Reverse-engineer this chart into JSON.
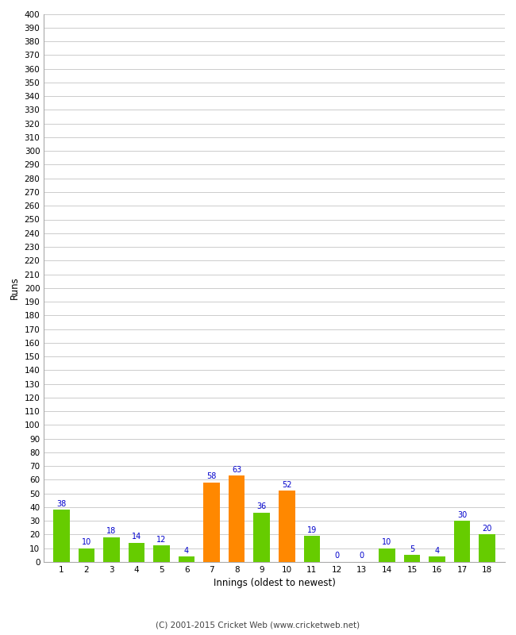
{
  "innings": [
    1,
    2,
    3,
    4,
    5,
    6,
    7,
    8,
    9,
    10,
    11,
    12,
    13,
    14,
    15,
    16,
    17,
    18
  ],
  "values": [
    38,
    10,
    18,
    14,
    12,
    4,
    58,
    63,
    36,
    52,
    19,
    0,
    0,
    10,
    5,
    4,
    30,
    20
  ],
  "colors": [
    "#66cc00",
    "#66cc00",
    "#66cc00",
    "#66cc00",
    "#66cc00",
    "#66cc00",
    "#ff8800",
    "#ff8800",
    "#66cc00",
    "#ff8800",
    "#66cc00",
    "#66cc00",
    "#66cc00",
    "#66cc00",
    "#66cc00",
    "#66cc00",
    "#66cc00",
    "#66cc00"
  ],
  "ylim": [
    0,
    400
  ],
  "yticks": [
    0,
    10,
    20,
    30,
    40,
    50,
    60,
    70,
    80,
    90,
    100,
    110,
    120,
    130,
    140,
    150,
    160,
    170,
    180,
    190,
    200,
    210,
    220,
    230,
    240,
    250,
    260,
    270,
    280,
    290,
    300,
    310,
    320,
    330,
    340,
    350,
    360,
    370,
    380,
    390,
    400
  ],
  "xlabel": "Innings (oldest to newest)",
  "ylabel": "Runs",
  "label_color": "#0000cc",
  "label_fontsize": 7,
  "axis_tick_fontsize": 7.5,
  "bar_width": 0.65,
  "background_color": "#ffffff",
  "grid_color": "#cccccc",
  "footer": "(C) 2001-2015 Cricket Web (www.cricketweb.net)",
  "footer_fontsize": 7.5
}
